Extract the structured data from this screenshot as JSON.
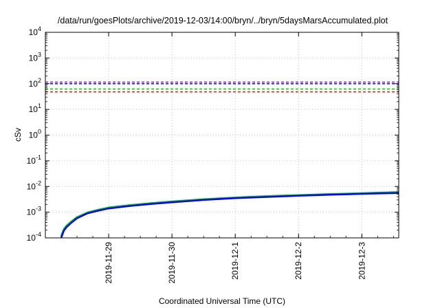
{
  "chart_data": {
    "type": "line",
    "title": "/data/run/goesPlots/archive/2019-12-03/14:00/bryn/../bryn/5daysMarsAccumulated.plot",
    "xlabel": "Coordinated Universal Time (UTC)",
    "ylabel": "cSv",
    "yscale": "log",
    "ylim": [
      0.0001,
      10000
    ],
    "xlim": [
      "2019-11-28T00:00",
      "2019-12-03T14:00"
    ],
    "y_ticks": [
      {
        "base": "10",
        "exp": "-4",
        "value": 0.0001
      },
      {
        "base": "10",
        "exp": "-3",
        "value": 0.001
      },
      {
        "base": "10",
        "exp": "-2",
        "value": 0.01
      },
      {
        "base": "10",
        "exp": "-1",
        "value": 0.1
      },
      {
        "base": "10",
        "exp": "0",
        "value": 1
      },
      {
        "base": "10",
        "exp": "1",
        "value": 10
      },
      {
        "base": "10",
        "exp": "2",
        "value": 100
      },
      {
        "base": "10",
        "exp": "3",
        "value": 1000
      },
      {
        "base": "10",
        "exp": "4",
        "value": 10000
      }
    ],
    "x_ticks": [
      {
        "label": "2019-11-29",
        "value": "2019-11-29T00:00"
      },
      {
        "label": "2019-11-30",
        "value": "2019-11-30T00:00"
      },
      {
        "label": "2019-12-1",
        "value": "2019-12-01T00:00"
      },
      {
        "label": "2019-12-2",
        "value": "2019-12-02T00:00"
      },
      {
        "label": "2019-12-3",
        "value": "2019-12-03T00:00"
      }
    ],
    "grid": true,
    "reference_lines": [
      {
        "value": 115,
        "color": "#9400d3",
        "style": "dashed"
      },
      {
        "value": 100,
        "color": "#0000ff",
        "style": "dashed"
      },
      {
        "value": 62,
        "color": "#00c000",
        "style": "dashed"
      },
      {
        "value": 48,
        "color": "#ff0000",
        "style": "dashed"
      }
    ],
    "series": [
      {
        "color": "#00c000",
        "x": [
          "2019-11-28T06:00",
          "2019-11-28T07:00",
          "2019-11-28T08:00",
          "2019-11-28T10:00",
          "2019-11-28T12:00",
          "2019-11-28T16:00",
          "2019-11-28T20:00",
          "2019-11-29T00:00",
          "2019-11-29T08:00",
          "2019-11-29T16:00",
          "2019-11-30T00:00",
          "2019-11-30T12:00",
          "2019-12-01T00:00",
          "2019-12-01T12:00",
          "2019-12-02T00:00",
          "2019-12-02T12:00",
          "2019-12-03T00:00",
          "2019-12-03T14:00"
        ],
        "y": [
          0.00012,
          0.00022,
          0.0003,
          0.00045,
          0.00064,
          0.00098,
          0.00124,
          0.00152,
          0.00188,
          0.00225,
          0.00262,
          0.0032,
          0.00375,
          0.0042,
          0.00465,
          0.0051,
          0.0055,
          0.0061
        ]
      },
      {
        "color": "#0000ff",
        "x": [
          "2019-11-28T06:00",
          "2019-11-28T07:00",
          "2019-11-28T08:00",
          "2019-11-28T10:00",
          "2019-11-28T12:00",
          "2019-11-28T16:00",
          "2019-11-28T20:00",
          "2019-11-29T00:00",
          "2019-11-29T08:00",
          "2019-11-29T16:00",
          "2019-11-30T00:00",
          "2019-11-30T12:00",
          "2019-12-01T00:00",
          "2019-12-01T12:00",
          "2019-12-02T00:00",
          "2019-12-02T12:00",
          "2019-12-03T00:00",
          "2019-12-03T14:00"
        ],
        "y": [
          0.0001,
          0.00019,
          0.00026,
          0.0004,
          0.00058,
          0.0009,
          0.00114,
          0.0014,
          0.00174,
          0.00208,
          0.00242,
          0.00298,
          0.0035,
          0.00392,
          0.00435,
          0.00478,
          0.00515,
          0.0056
        ]
      }
    ]
  }
}
